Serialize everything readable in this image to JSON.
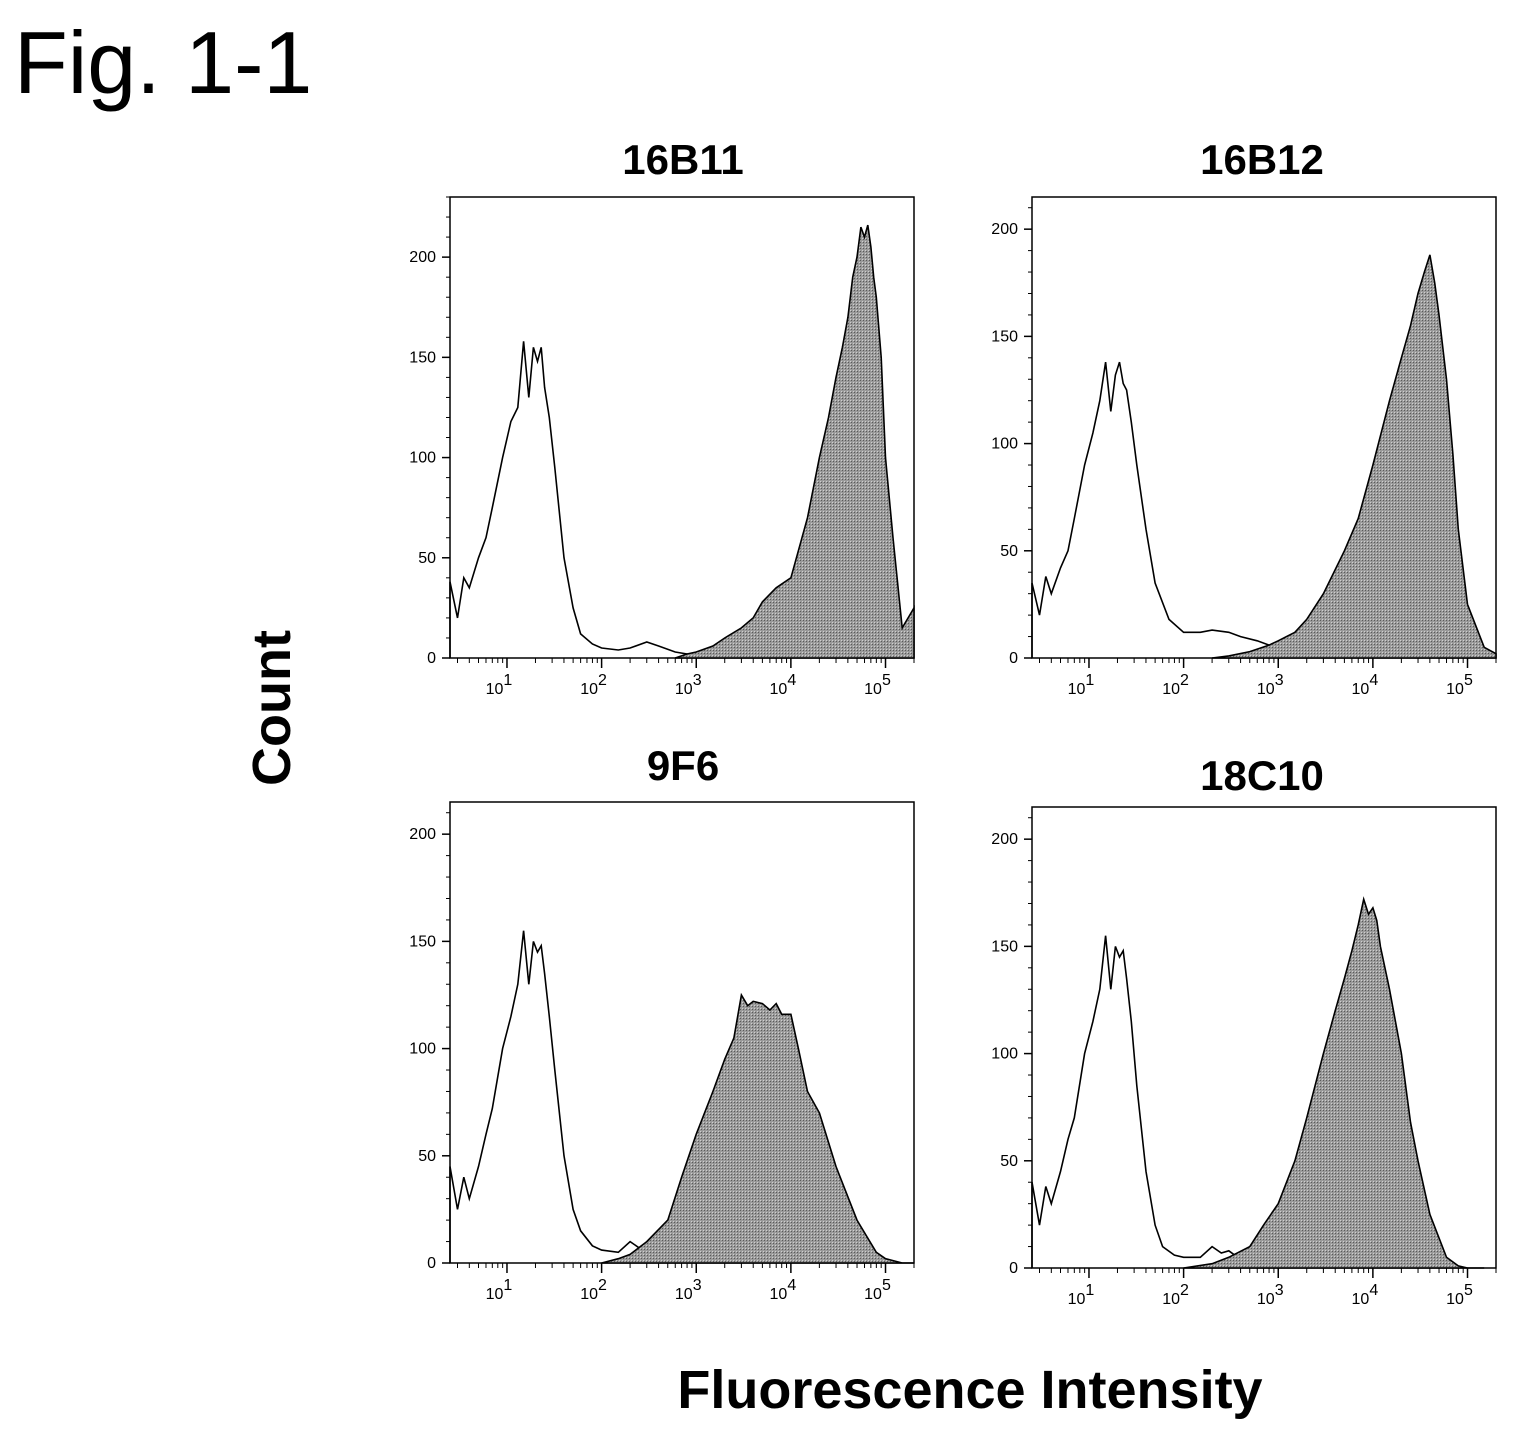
{
  "figure": {
    "title": "Fig. 1-1",
    "ylabel": "Count",
    "xlabel": "Fluorescence Intensity"
  },
  "chart_data": [
    {
      "type": "area",
      "title": "16B11",
      "x_scale": "log",
      "xlim": [
        2.5,
        200000
      ],
      "ylim": [
        0,
        230
      ],
      "yticks": [
        0,
        50,
        100,
        150,
        200
      ],
      "xticks": [
        "10^1",
        "10^2",
        "10^3",
        "10^4",
        "10^5"
      ],
      "series": [
        {
          "style": "outline",
          "x": [
            2.5,
            3,
            3.5,
            4,
            5,
            6,
            7,
            9,
            11,
            13,
            15,
            17,
            19,
            21,
            23,
            25,
            28,
            32,
            40,
            50,
            60,
            80,
            100,
            150,
            200,
            300,
            400,
            600,
            800,
            1000
          ],
          "y": [
            38,
            20,
            40,
            35,
            50,
            60,
            75,
            100,
            118,
            125,
            158,
            130,
            155,
            148,
            155,
            135,
            120,
            95,
            50,
            25,
            12,
            7,
            5,
            4,
            5,
            8,
            6,
            3,
            2,
            1
          ]
        },
        {
          "style": "filled",
          "x": [
            600,
            800,
            1000,
            1500,
            2000,
            3000,
            4000,
            5000,
            7000,
            10000,
            15000,
            20000,
            25000,
            30000,
            35000,
            40000,
            45000,
            50000,
            55000,
            60000,
            65000,
            70000,
            75000,
            80000,
            90000,
            100000,
            120000,
            150000,
            200000
          ],
          "y": [
            0,
            2,
            3,
            6,
            10,
            15,
            20,
            28,
            35,
            40,
            70,
            100,
            120,
            140,
            155,
            170,
            190,
            200,
            215,
            210,
            216,
            205,
            190,
            180,
            150,
            100,
            60,
            15,
            25
          ]
        }
      ]
    },
    {
      "type": "area",
      "title": "16B12",
      "x_scale": "log",
      "xlim": [
        2.5,
        200000
      ],
      "ylim": [
        0,
        215
      ],
      "yticks": [
        0,
        50,
        100,
        150,
        200
      ],
      "xticks": [
        "10^1",
        "10^2",
        "10^3",
        "10^4",
        "10^5"
      ],
      "series": [
        {
          "style": "outline",
          "x": [
            2.5,
            3,
            3.5,
            4,
            5,
            6,
            7,
            9,
            11,
            13,
            15,
            17,
            19,
            21,
            23,
            25,
            28,
            32,
            40,
            50,
            70,
            100,
            150,
            200,
            300,
            400,
            600,
            800,
            1000,
            1500,
            2000,
            3000
          ],
          "y": [
            35,
            20,
            38,
            30,
            42,
            50,
            65,
            90,
            105,
            120,
            138,
            115,
            132,
            138,
            128,
            125,
            110,
            90,
            60,
            35,
            18,
            12,
            12,
            13,
            12,
            10,
            8,
            6,
            5,
            3,
            2,
            1
          ]
        },
        {
          "style": "filled",
          "x": [
            200,
            300,
            500,
            800,
            1000,
            1500,
            2000,
            3000,
            5000,
            7000,
            10000,
            15000,
            20000,
            25000,
            30000,
            35000,
            40000,
            45000,
            50000,
            60000,
            70000,
            80000,
            100000,
            150000,
            200000
          ],
          "y": [
            0,
            1,
            3,
            6,
            8,
            12,
            18,
            30,
            50,
            65,
            90,
            120,
            140,
            155,
            170,
            180,
            188,
            175,
            160,
            130,
            95,
            60,
            25,
            5,
            2
          ]
        }
      ]
    },
    {
      "type": "area",
      "title": "9F6",
      "x_scale": "log",
      "xlim": [
        2.5,
        200000
      ],
      "ylim": [
        0,
        215
      ],
      "yticks": [
        0,
        50,
        100,
        150,
        200
      ],
      "xticks": [
        "10^1",
        "10^2",
        "10^3",
        "10^4",
        "10^5"
      ],
      "series": [
        {
          "style": "outline",
          "x": [
            2.5,
            3,
            3.5,
            4,
            5,
            6,
            7,
            9,
            11,
            13,
            15,
            17,
            19,
            21,
            23,
            25,
            28,
            32,
            40,
            50,
            60,
            80,
            100,
            150,
            200,
            250,
            300,
            400,
            500,
            700,
            1000
          ],
          "y": [
            45,
            25,
            40,
            30,
            45,
            60,
            72,
            100,
            115,
            130,
            155,
            130,
            150,
            145,
            148,
            135,
            115,
            90,
            50,
            25,
            15,
            8,
            6,
            5,
            10,
            7,
            8,
            5,
            3,
            1,
            0
          ]
        },
        {
          "style": "filled",
          "x": [
            100,
            150,
            200,
            300,
            500,
            700,
            1000,
            1500,
            2000,
            2500,
            3000,
            3500,
            4000,
            5000,
            6000,
            7000,
            8000,
            10000,
            12000,
            15000,
            20000,
            30000,
            50000,
            80000,
            100000,
            150000,
            200000
          ],
          "y": [
            0,
            2,
            4,
            10,
            20,
            40,
            60,
            80,
            95,
            105,
            125,
            120,
            122,
            121,
            118,
            121,
            116,
            116,
            100,
            80,
            70,
            45,
            20,
            5,
            2,
            0,
            0
          ]
        }
      ]
    },
    {
      "type": "area",
      "title": "18C10",
      "x_scale": "log",
      "xlim": [
        2.5,
        200000
      ],
      "ylim": [
        0,
        215
      ],
      "yticks": [
        0,
        50,
        100,
        150,
        200
      ],
      "xticks": [
        "10^1",
        "10^2",
        "10^3",
        "10^4",
        "10^5"
      ],
      "series": [
        {
          "style": "outline",
          "x": [
            2.5,
            3,
            3.5,
            4,
            5,
            6,
            7,
            9,
            11,
            13,
            15,
            17,
            19,
            21,
            23,
            25,
            28,
            32,
            40,
            50,
            60,
            80,
            100,
            150,
            200,
            250,
            300,
            400,
            500,
            700,
            1000
          ],
          "y": [
            40,
            20,
            38,
            30,
            45,
            60,
            70,
            100,
            115,
            130,
            155,
            130,
            150,
            145,
            148,
            135,
            115,
            85,
            45,
            20,
            10,
            6,
            5,
            5,
            10,
            7,
            8,
            4,
            2,
            1,
            0
          ]
        },
        {
          "style": "filled",
          "x": [
            100,
            200,
            300,
            500,
            700,
            1000,
            1500,
            2000,
            3000,
            4000,
            5000,
            6000,
            7000,
            8000,
            9000,
            10000,
            11000,
            12000,
            15000,
            20000,
            25000,
            30000,
            40000,
            60000,
            80000,
            100000,
            150000
          ],
          "y": [
            0,
            2,
            5,
            10,
            20,
            30,
            50,
            70,
            100,
            120,
            135,
            148,
            160,
            172,
            165,
            168,
            162,
            150,
            130,
            100,
            68,
            50,
            25,
            5,
            1,
            0,
            0
          ]
        }
      ]
    }
  ]
}
